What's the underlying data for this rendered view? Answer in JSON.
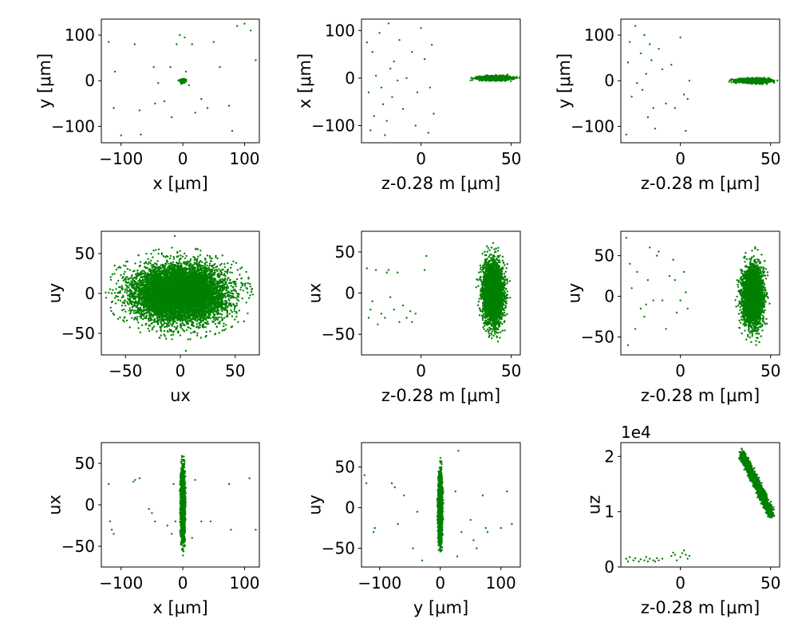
{
  "figure": {
    "marker_color": "#008000",
    "background": "#ffffff"
  },
  "chart_data": [
    {
      "type": "scatter",
      "xlabel": "x [μm]",
      "ylabel": "y [μm]",
      "xlim": [
        -132,
        124
      ],
      "ylim": [
        -136,
        135
      ],
      "xticks": [
        -100,
        0,
        100
      ],
      "yticks": [
        -100,
        0,
        100
      ],
      "core": {
        "cx": 0,
        "cy": 0,
        "sx": 1.8,
        "sy": 1.6,
        "n": 700,
        "shape": "gauss"
      },
      "points": [
        [
          -120,
          85
        ],
        [
          -110,
          20
        ],
        [
          -112,
          -60
        ],
        [
          -100,
          -120
        ],
        [
          -78,
          80
        ],
        [
          -68,
          -118
        ],
        [
          -70,
          -65
        ],
        [
          -47,
          30
        ],
        [
          -45,
          -50
        ],
        [
          -40,
          -5
        ],
        [
          -30,
          -45
        ],
        [
          -20,
          30
        ],
        [
          -18,
          -80
        ],
        [
          -10,
          80
        ],
        [
          -5,
          100
        ],
        [
          3,
          95
        ],
        [
          5,
          20
        ],
        [
          10,
          -10
        ],
        [
          15,
          80
        ],
        [
          20,
          -70
        ],
        [
          30,
          -40
        ],
        [
          40,
          -60
        ],
        [
          50,
          85
        ],
        [
          60,
          30
        ],
        [
          75,
          -55
        ],
        [
          80,
          -110
        ],
        [
          88,
          120
        ],
        [
          100,
          125
        ],
        [
          110,
          110
        ],
        [
          118,
          45
        ]
      ]
    },
    {
      "type": "scatter",
      "xlabel": "z-0.28 m [μm]",
      "ylabel": "x [μm]",
      "xlim": [
        -33,
        55
      ],
      "ylim": [
        -136,
        124
      ],
      "xticks": [
        0,
        50
      ],
      "yticks": [
        -100,
        0,
        100
      ],
      "core": {
        "cx": 41,
        "cy": 0,
        "sx": 4.2,
        "sy": 2.2,
        "n": 1400,
        "shape": "gauss"
      },
      "points": [
        [
          -30,
          75
        ],
        [
          -29,
          -30
        ],
        [
          -28,
          -110
        ],
        [
          -27,
          55
        ],
        [
          -26,
          -80
        ],
        [
          -25,
          5
        ],
        [
          -23,
          95
        ],
        [
          -22,
          -20
        ],
        [
          -21,
          -55
        ],
        [
          -20,
          -120
        ],
        [
          -19,
          -90
        ],
        [
          -18,
          115
        ],
        [
          -17,
          20
        ],
        [
          -16,
          -40
        ],
        [
          -15,
          35
        ],
        [
          -13,
          -5
        ],
        [
          -12,
          80
        ],
        [
          -10,
          -65
        ],
        [
          -8,
          0
        ],
        [
          -5,
          55
        ],
        [
          -3,
          -100
        ],
        [
          -2,
          -30
        ],
        [
          0,
          105
        ],
        [
          2,
          40
        ],
        [
          4,
          -115
        ],
        [
          5,
          -20
        ],
        [
          6,
          70
        ],
        [
          7,
          -75
        ]
      ]
    },
    {
      "type": "scatter",
      "xlabel": "z-0.28 m [μm]",
      "ylabel": "y [μm]",
      "xlim": [
        -33,
        55
      ],
      "ylim": [
        -136,
        135
      ],
      "xticks": [
        0,
        50
      ],
      "yticks": [
        -100,
        0,
        100
      ],
      "core": {
        "cx": 41,
        "cy": 0,
        "sx": 4.2,
        "sy": 2.2,
        "n": 1400,
        "shape": "gauss"
      },
      "points": [
        [
          -30,
          -118
        ],
        [
          -29,
          40
        ],
        [
          -28,
          85
        ],
        [
          -27,
          -35
        ],
        [
          -25,
          120
        ],
        [
          -24,
          -5
        ],
        [
          -22,
          60
        ],
        [
          -21,
          -20
        ],
        [
          -20,
          100
        ],
        [
          -19,
          15
        ],
        [
          -18,
          -80
        ],
        [
          -17,
          80
        ],
        [
          -16,
          45
        ],
        [
          -15,
          -60
        ],
        [
          -14,
          -105
        ],
        [
          -12,
          70
        ],
        [
          -10,
          25
        ],
        [
          -8,
          -50
        ],
        [
          -5,
          35
        ],
        [
          -3,
          -60
        ],
        [
          0,
          95
        ],
        [
          2,
          -30
        ],
        [
          3,
          -110
        ],
        [
          4,
          -40
        ],
        [
          5,
          0
        ]
      ]
    },
    {
      "type": "scatter",
      "xlabel": "ux",
      "ylabel": "uy",
      "xlim": [
        -72,
        72
      ],
      "ylim": [
        -77,
        78
      ],
      "xticks": [
        -50,
        0,
        50
      ],
      "yticks": [
        -50,
        0,
        50
      ],
      "core": {
        "cx": 0,
        "cy": 0,
        "sx": 20,
        "sy": 17,
        "n": 9000,
        "shape": "gauss",
        "clip": 3.4
      },
      "points": [
        [
          -55,
          -30
        ],
        [
          -60,
          35
        ],
        [
          62,
          20
        ],
        [
          58,
          -35
        ],
        [
          -5,
          72
        ],
        [
          5,
          -72
        ],
        [
          -62,
          -10
        ],
        [
          65,
          5
        ]
      ]
    },
    {
      "type": "scatter",
      "xlabel": "z-0.28 m [μm]",
      "ylabel": "ux",
      "xlim": [
        -33,
        55
      ],
      "ylim": [
        -75,
        75
      ],
      "xticks": [
        0,
        50
      ],
      "yticks": [
        -50,
        0,
        50
      ],
      "core": {
        "cx": 40,
        "cy": 0,
        "sx": 2.8,
        "sy": 18,
        "n": 3500,
        "shape": "gauss",
        "clip": 3.4
      },
      "points": [
        [
          -30,
          30
        ],
        [
          -29,
          -30
        ],
        [
          -28,
          -20
        ],
        [
          -27,
          -10
        ],
        [
          -25,
          28
        ],
        [
          -24,
          -38
        ],
        [
          -22,
          -25
        ],
        [
          -20,
          -30
        ],
        [
          -19,
          25
        ],
        [
          -18,
          28
        ],
        [
          -17,
          -5
        ],
        [
          -15,
          -20
        ],
        [
          -13,
          25
        ],
        [
          -12,
          -35
        ],
        [
          -10,
          -15
        ],
        [
          -8,
          -30
        ],
        [
          -6,
          -22
        ],
        [
          -5,
          -35
        ],
        [
          -3,
          -25
        ],
        [
          2,
          28
        ],
        [
          3,
          45
        ]
      ]
    },
    {
      "type": "scatter",
      "xlabel": "z-0.28 m [μm]",
      "ylabel": "uy",
      "xlim": [
        -33,
        55
      ],
      "ylim": [
        -72,
        80
      ],
      "xticks": [
        0,
        50
      ],
      "yticks": [
        -50,
        0,
        50
      ],
      "core": {
        "cx": 40,
        "cy": 0,
        "sx": 2.8,
        "sy": 18,
        "n": 3500,
        "shape": "gauss",
        "clip": 3.4
      },
      "points": [
        [
          -30,
          72
        ],
        [
          -29,
          -60
        ],
        [
          -28,
          40
        ],
        [
          -27,
          10
        ],
        [
          -25,
          -40
        ],
        [
          -24,
          30
        ],
        [
          -22,
          -15
        ],
        [
          -20,
          -25
        ],
        [
          -19,
          -10
        ],
        [
          -18,
          20
        ],
        [
          -17,
          60
        ],
        [
          -15,
          -5
        ],
        [
          -13,
          50
        ],
        [
          -12,
          55
        ],
        [
          -10,
          -5
        ],
        [
          -8,
          -40
        ],
        [
          -6,
          25
        ],
        [
          -4,
          45
        ],
        [
          -3,
          20
        ],
        [
          -2,
          -20
        ],
        [
          0,
          -5
        ],
        [
          2,
          30
        ],
        [
          3,
          5
        ],
        [
          4,
          -15
        ]
      ]
    },
    {
      "type": "scatter",
      "xlabel": "x [μm]",
      "ylabel": "ux",
      "xlim": [
        -132,
        124
      ],
      "ylim": [
        -75,
        75
      ],
      "xticks": [
        -100,
        0,
        100
      ],
      "yticks": [
        -50,
        0,
        50
      ],
      "core": {
        "cx": 0,
        "cy": 0,
        "sx": 1.5,
        "sy": 18,
        "n": 3500,
        "shape": "gauss",
        "clip": 3.4
      },
      "points": [
        [
          -120,
          25
        ],
        [
          -118,
          -20
        ],
        [
          -115,
          -30
        ],
        [
          -112,
          -35
        ],
        [
          -80,
          28
        ],
        [
          -77,
          30
        ],
        [
          -70,
          32
        ],
        [
          -55,
          -5
        ],
        [
          -50,
          -10
        ],
        [
          -45,
          -20
        ],
        [
          -25,
          -25
        ],
        [
          -18,
          -35
        ],
        [
          -15,
          25
        ],
        [
          -12,
          -20
        ],
        [
          15,
          -40
        ],
        [
          20,
          30
        ],
        [
          30,
          -20
        ],
        [
          45,
          -20
        ],
        [
          75,
          25
        ],
        [
          78,
          -30
        ],
        [
          108,
          32
        ],
        [
          118,
          -30
        ]
      ]
    },
    {
      "type": "scatter",
      "xlabel": "y [μm]",
      "ylabel": "uy",
      "xlim": [
        -130,
        132
      ],
      "ylim": [
        -73,
        80
      ],
      "xticks": [
        -100,
        0,
        100
      ],
      "yticks": [
        -50,
        0,
        50
      ],
      "core": {
        "cx": 0,
        "cy": 0,
        "sx": 1.5,
        "sy": 18,
        "n": 3500,
        "shape": "gauss",
        "clip": 3.4
      },
      "points": [
        [
          -125,
          40
        ],
        [
          -122,
          30
        ],
        [
          -110,
          -30
        ],
        [
          -108,
          -25
        ],
        [
          -80,
          30
        ],
        [
          -75,
          25
        ],
        [
          -70,
          -20
        ],
        [
          -60,
          15
        ],
        [
          -45,
          -50
        ],
        [
          -38,
          -5
        ],
        [
          -30,
          -65
        ],
        [
          25,
          20
        ],
        [
          28,
          -60
        ],
        [
          35,
          -30
        ],
        [
          30,
          70
        ],
        [
          50,
          -15
        ],
        [
          55,
          -40
        ],
        [
          60,
          -50
        ],
        [
          70,
          15
        ],
        [
          75,
          -25
        ],
        [
          78,
          -30
        ],
        [
          100,
          -25
        ],
        [
          110,
          20
        ],
        [
          118,
          -20
        ]
      ]
    },
    {
      "type": "scatter",
      "xlabel": "z-0.28 m [μm]",
      "ylabel": "uz",
      "offset_text": "1e4",
      "xlim": [
        -33,
        55
      ],
      "ylim": [
        0,
        2.25
      ],
      "xticks": [
        0,
        50
      ],
      "yticks": [
        0,
        1,
        2
      ],
      "core": {
        "x0": 34,
        "y0": 2.05,
        "x1": 50.5,
        "y1": 0.95,
        "width": 0.08,
        "n": 2200,
        "shape": "band"
      },
      "points": [
        [
          -30,
          0.15
        ],
        [
          -29,
          0.1
        ],
        [
          -28,
          0.18
        ],
        [
          -26,
          0.12
        ],
        [
          -25,
          0.16
        ],
        [
          -23,
          0.1
        ],
        [
          -22,
          0.14
        ],
        [
          -20,
          0.12
        ],
        [
          -19,
          0.18
        ],
        [
          -18,
          0.1
        ],
        [
          -17,
          0.15
        ],
        [
          -15,
          0.12
        ],
        [
          -14,
          0.1
        ],
        [
          -13,
          0.16
        ],
        [
          -12,
          0.12
        ],
        [
          -10,
          0.15
        ],
        [
          -5,
          0.2
        ],
        [
          -4,
          0.26
        ],
        [
          -3,
          0.22
        ],
        [
          -2,
          0.12
        ],
        [
          0,
          0.18
        ],
        [
          1,
          0.25
        ],
        [
          2,
          0.3
        ],
        [
          3,
          0.22
        ],
        [
          4,
          0.15
        ],
        [
          5,
          0.2
        ]
      ]
    }
  ]
}
